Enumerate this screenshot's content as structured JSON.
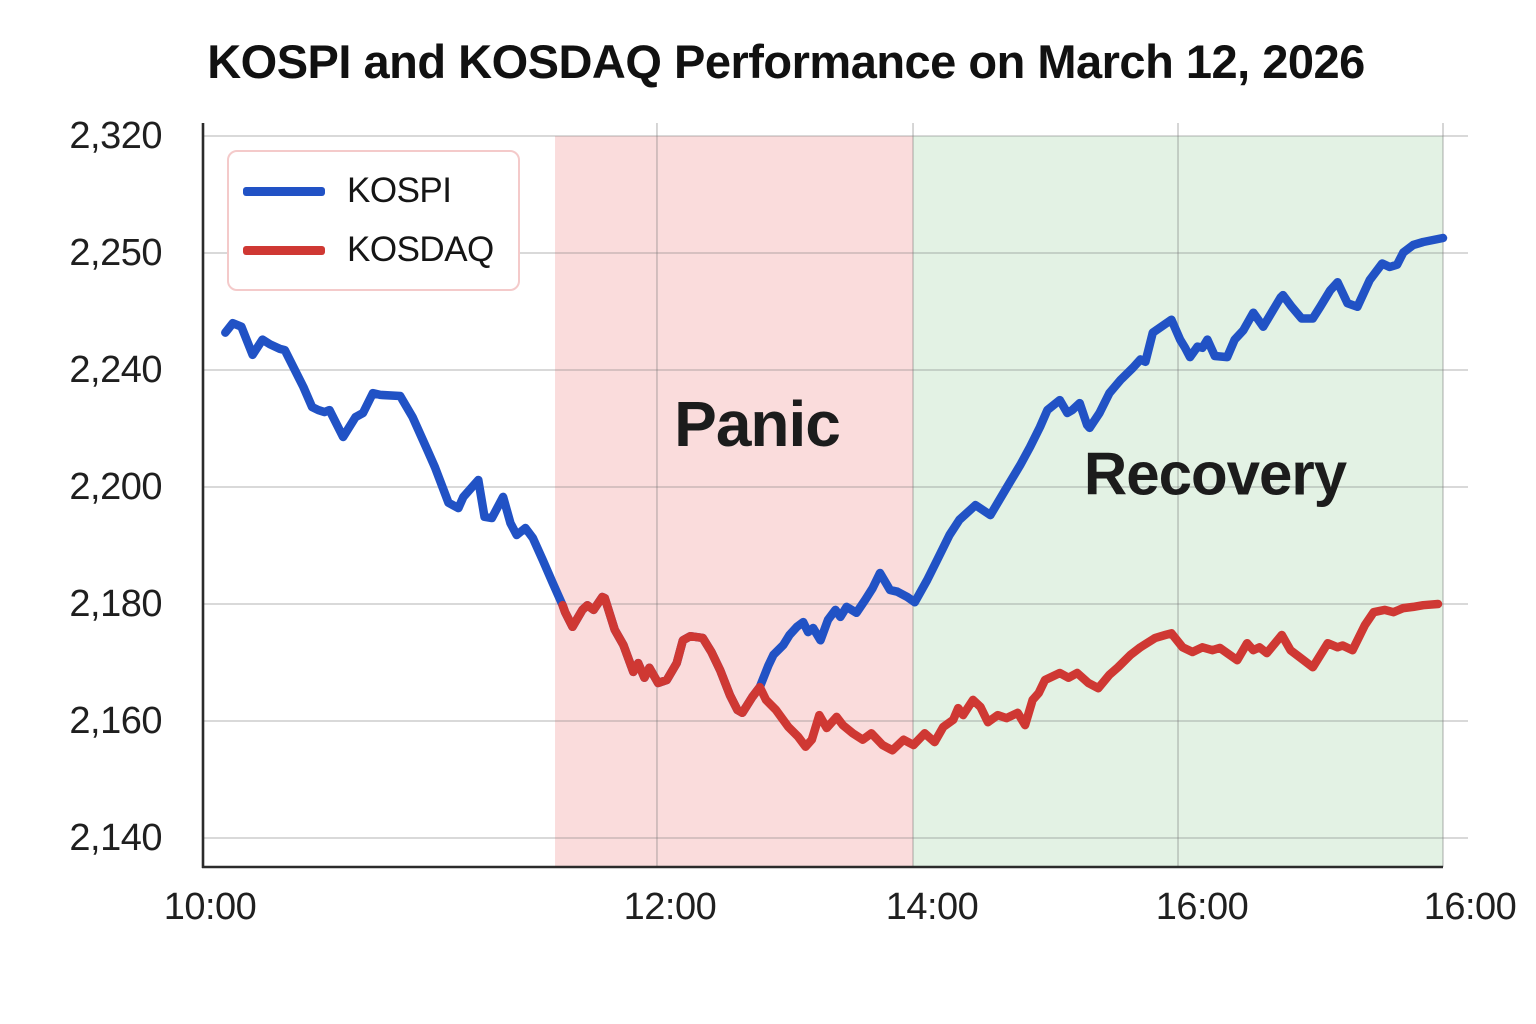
{
  "title": "KOSPI and KOSDAQ Performance on March 12, 2026",
  "chart_data": {
    "type": "line",
    "title": "KOSPI and KOSDAQ Performance on March 12, 2026",
    "xlabel": "",
    "ylabel": "",
    "grid": true,
    "legend_position": "upper-left",
    "axis_note": "tick marks are evenly spaced on screen; printed tick values are irregular (as shown in the image)",
    "y_ticks": [
      {
        "label": "2,320",
        "value": 2320
      },
      {
        "label": "2,250",
        "value": 2250
      },
      {
        "label": "2,240",
        "value": 2240
      },
      {
        "label": "2,200",
        "value": 2200
      },
      {
        "label": "2,180",
        "value": 2180
      },
      {
        "label": "2,160",
        "value": 2160
      },
      {
        "label": "2,140",
        "value": 2140
      }
    ],
    "x_ticks": [
      {
        "label": "10:00",
        "fx": 0.0,
        "label_dx": 7
      },
      {
        "label": "12:00",
        "fx": 0.3661,
        "label_dx": 13
      },
      {
        "label": "14:00",
        "fx": 0.5726,
        "label_dx": 19
      },
      {
        "label": "16:00",
        "fx": 0.7863,
        "label_dx": 24
      },
      {
        "label": "16:00",
        "fx": 1.0,
        "label_dx": 27
      }
    ],
    "bands": [
      {
        "label": "Panic",
        "color": "#fadcdc",
        "from_fx": 0.2839,
        "to_fx": 0.5726
      },
      {
        "label": "Recovery",
        "color": "#e3f2e4",
        "from_fx": 0.5726,
        "to_fx": 1.0
      }
    ],
    "annotations": [
      {
        "text": "Panic",
        "fx": 0.447,
        "fy": 0.405
      },
      {
        "text": "Recovery",
        "fx": 0.816,
        "fy": 0.472
      }
    ],
    "series": [
      {
        "name": "KOSPI",
        "color": "#2152c5",
        "points": [
          [
            0.018,
            2243.2
          ],
          [
            0.024,
            2244.0
          ],
          [
            0.031,
            2243.7
          ],
          [
            0.04,
            2241.3
          ],
          [
            0.048,
            2242.6
          ],
          [
            0.054,
            2242.2
          ],
          [
            0.062,
            2241.8
          ],
          [
            0.066,
            2241.7
          ],
          [
            0.081,
            2234.2
          ],
          [
            0.088,
            2227.3
          ],
          [
            0.093,
            2226.3
          ],
          [
            0.098,
            2225.6
          ],
          [
            0.102,
            2226.3
          ],
          [
            0.113,
            2217.1
          ],
          [
            0.123,
            2223.9
          ],
          [
            0.129,
            2225.3
          ],
          [
            0.137,
            2232.1
          ],
          [
            0.143,
            2231.5
          ],
          [
            0.159,
            2231.1
          ],
          [
            0.169,
            2223.9
          ],
          [
            0.181,
            2212.6
          ],
          [
            0.187,
            2206.8
          ],
          [
            0.198,
            2197.3
          ],
          [
            0.206,
            2196.4
          ],
          [
            0.21,
            2198.3
          ],
          [
            0.222,
            2202.4
          ],
          [
            0.227,
            2194.9
          ],
          [
            0.233,
            2194.7
          ],
          [
            0.242,
            2198.3
          ],
          [
            0.248,
            2193.8
          ],
          [
            0.253,
            2191.8
          ],
          [
            0.26,
            2193.0
          ],
          [
            0.266,
            2191.3
          ],
          [
            0.274,
            2187.5
          ],
          [
            0.282,
            2183.6
          ],
          [
            0.29,
            2179.8
          ],
          [
            0.292,
            2178.6
          ],
          [
            0.298,
            2176.1
          ],
          [
            0.306,
            2179.0
          ],
          [
            0.31,
            2179.8
          ],
          [
            0.315,
            2179.0
          ],
          [
            0.322,
            2181.2
          ],
          [
            0.324,
            2181.0
          ],
          [
            0.332,
            2175.6
          ],
          [
            0.339,
            2173.0
          ],
          [
            0.347,
            2168.4
          ],
          [
            0.351,
            2169.9
          ],
          [
            0.356,
            2167.4
          ],
          [
            0.36,
            2169.1
          ],
          [
            0.367,
            2166.5
          ],
          [
            0.374,
            2167.0
          ],
          [
            0.382,
            2169.9
          ],
          [
            0.387,
            2173.8
          ],
          [
            0.393,
            2174.5
          ],
          [
            0.403,
            2174.2
          ],
          [
            0.41,
            2171.8
          ],
          [
            0.417,
            2168.7
          ],
          [
            0.425,
            2164.4
          ],
          [
            0.431,
            2161.9
          ],
          [
            0.435,
            2161.4
          ],
          [
            0.443,
            2164.1
          ],
          [
            0.449,
            2165.8
          ],
          [
            0.456,
            2169.5
          ],
          [
            0.46,
            2171.3
          ],
          [
            0.468,
            2173.0
          ],
          [
            0.473,
            2174.7
          ],
          [
            0.479,
            2176.1
          ],
          [
            0.484,
            2176.9
          ],
          [
            0.488,
            2175.2
          ],
          [
            0.492,
            2175.9
          ],
          [
            0.498,
            2173.8
          ],
          [
            0.504,
            2177.3
          ],
          [
            0.51,
            2179.0
          ],
          [
            0.514,
            2177.8
          ],
          [
            0.519,
            2179.5
          ],
          [
            0.527,
            2178.5
          ],
          [
            0.534,
            2180.7
          ],
          [
            0.54,
            2182.7
          ],
          [
            0.546,
            2185.3
          ],
          [
            0.554,
            2182.4
          ],
          [
            0.56,
            2182.1
          ],
          [
            0.568,
            2181.2
          ],
          [
            0.574,
            2180.3
          ],
          [
            0.584,
            2184.1
          ],
          [
            0.592,
            2187.5
          ],
          [
            0.602,
            2191.8
          ],
          [
            0.61,
            2194.4
          ],
          [
            0.623,
            2196.9
          ],
          [
            0.635,
            2195.2
          ],
          [
            0.647,
            2199.5
          ],
          [
            0.659,
            2207.5
          ],
          [
            0.667,
            2213.7
          ],
          [
            0.675,
            2220.5
          ],
          [
            0.681,
            2226.3
          ],
          [
            0.691,
            2229.7
          ],
          [
            0.697,
            2225.3
          ],
          [
            0.701,
            2226.3
          ],
          [
            0.707,
            2228.7
          ],
          [
            0.713,
            2221.2
          ],
          [
            0.715,
            2220.2
          ],
          [
            0.723,
            2225.3
          ],
          [
            0.731,
            2232.1
          ],
          [
            0.74,
            2236.6
          ],
          [
            0.75,
            2240.2
          ],
          [
            0.756,
            2240.9
          ],
          [
            0.76,
            2240.7
          ],
          [
            0.766,
            2243.2
          ],
          [
            0.781,
            2244.3
          ],
          [
            0.788,
            2242.6
          ],
          [
            0.792,
            2241.9
          ],
          [
            0.796,
            2241.1
          ],
          [
            0.802,
            2242.0
          ],
          [
            0.806,
            2241.9
          ],
          [
            0.81,
            2242.6
          ],
          [
            0.816,
            2241.2
          ],
          [
            0.826,
            2241.1
          ],
          [
            0.832,
            2242.6
          ],
          [
            0.839,
            2243.4
          ],
          [
            0.847,
            2244.9
          ],
          [
            0.855,
            2243.7
          ],
          [
            0.869,
            2246.2
          ],
          [
            0.871,
            2246.4
          ],
          [
            0.878,
            2245.4
          ],
          [
            0.886,
            2244.4
          ],
          [
            0.895,
            2244.4
          ],
          [
            0.901,
            2245.4
          ],
          [
            0.909,
            2246.8
          ],
          [
            0.915,
            2247.5
          ],
          [
            0.923,
            2245.7
          ],
          [
            0.931,
            2245.4
          ],
          [
            0.941,
            2247.7
          ],
          [
            0.951,
            2249.1
          ],
          [
            0.957,
            2248.8
          ],
          [
            0.963,
            2249.0
          ],
          [
            0.968,
            2250.3
          ],
          [
            0.976,
            2254.8
          ],
          [
            0.984,
            2256.6
          ],
          [
            0.992,
            2257.8
          ],
          [
            1.0,
            2259.0
          ]
        ]
      },
      {
        "name": "KOSDAQ",
        "color": "#cf3833",
        "points": [
          [
            0.29,
            2179.8
          ],
          [
            0.292,
            2178.6
          ],
          [
            0.298,
            2176.1
          ],
          [
            0.306,
            2179.0
          ],
          [
            0.31,
            2179.8
          ],
          [
            0.315,
            2179.0
          ],
          [
            0.322,
            2181.2
          ],
          [
            0.324,
            2181.0
          ],
          [
            0.332,
            2175.6
          ],
          [
            0.339,
            2173.0
          ],
          [
            0.347,
            2168.4
          ],
          [
            0.351,
            2169.9
          ],
          [
            0.356,
            2167.4
          ],
          [
            0.36,
            2169.1
          ],
          [
            0.367,
            2166.5
          ],
          [
            0.374,
            2167.0
          ],
          [
            0.382,
            2169.9
          ],
          [
            0.387,
            2173.8
          ],
          [
            0.393,
            2174.5
          ],
          [
            0.403,
            2174.2
          ],
          [
            0.41,
            2171.8
          ],
          [
            0.417,
            2168.7
          ],
          [
            0.425,
            2164.4
          ],
          [
            0.431,
            2161.9
          ],
          [
            0.435,
            2161.4
          ],
          [
            0.443,
            2164.1
          ],
          [
            0.449,
            2165.8
          ],
          [
            0.454,
            2163.6
          ],
          [
            0.462,
            2161.9
          ],
          [
            0.472,
            2159.0
          ],
          [
            0.48,
            2157.3
          ],
          [
            0.486,
            2155.6
          ],
          [
            0.491,
            2156.8
          ],
          [
            0.497,
            2161.0
          ],
          [
            0.503,
            2158.8
          ],
          [
            0.511,
            2160.7
          ],
          [
            0.516,
            2159.3
          ],
          [
            0.524,
            2157.9
          ],
          [
            0.532,
            2156.8
          ],
          [
            0.539,
            2157.9
          ],
          [
            0.548,
            2155.9
          ],
          [
            0.556,
            2155.0
          ],
          [
            0.565,
            2156.8
          ],
          [
            0.573,
            2155.9
          ],
          [
            0.582,
            2157.9
          ],
          [
            0.59,
            2156.4
          ],
          [
            0.597,
            2159.0
          ],
          [
            0.605,
            2160.2
          ],
          [
            0.609,
            2162.2
          ],
          [
            0.613,
            2161.0
          ],
          [
            0.621,
            2163.6
          ],
          [
            0.627,
            2162.4
          ],
          [
            0.633,
            2159.8
          ],
          [
            0.641,
            2161.0
          ],
          [
            0.648,
            2160.5
          ],
          [
            0.657,
            2161.4
          ],
          [
            0.663,
            2159.3
          ],
          [
            0.669,
            2163.6
          ],
          [
            0.674,
            2164.8
          ],
          [
            0.679,
            2167.0
          ],
          [
            0.691,
            2168.2
          ],
          [
            0.698,
            2167.4
          ],
          [
            0.705,
            2168.2
          ],
          [
            0.714,
            2166.5
          ],
          [
            0.722,
            2165.6
          ],
          [
            0.731,
            2167.9
          ],
          [
            0.738,
            2169.2
          ],
          [
            0.748,
            2171.3
          ],
          [
            0.756,
            2172.6
          ],
          [
            0.768,
            2174.2
          ],
          [
            0.776,
            2174.7
          ],
          [
            0.781,
            2175.0
          ],
          [
            0.79,
            2172.6
          ],
          [
            0.798,
            2171.8
          ],
          [
            0.806,
            2172.6
          ],
          [
            0.814,
            2172.1
          ],
          [
            0.82,
            2172.5
          ],
          [
            0.826,
            2171.6
          ],
          [
            0.834,
            2170.4
          ],
          [
            0.842,
            2173.3
          ],
          [
            0.847,
            2172.1
          ],
          [
            0.852,
            2172.6
          ],
          [
            0.858,
            2171.6
          ],
          [
            0.87,
            2174.7
          ],
          [
            0.877,
            2172.1
          ],
          [
            0.885,
            2170.8
          ],
          [
            0.895,
            2169.2
          ],
          [
            0.907,
            2173.3
          ],
          [
            0.915,
            2172.6
          ],
          [
            0.919,
            2172.9
          ],
          [
            0.927,
            2172.1
          ],
          [
            0.937,
            2176.4
          ],
          [
            0.944,
            2178.6
          ],
          [
            0.953,
            2179.0
          ],
          [
            0.96,
            2178.6
          ],
          [
            0.968,
            2179.3
          ],
          [
            0.976,
            2179.5
          ],
          [
            0.984,
            2179.8
          ],
          [
            0.996,
            2180.0
          ]
        ]
      }
    ]
  },
  "colors": {
    "grid": "rgba(120,120,120,0.38)",
    "spine": "#2b2b2b",
    "kospi": "#2152c5",
    "kosdaq": "#cf3833"
  }
}
